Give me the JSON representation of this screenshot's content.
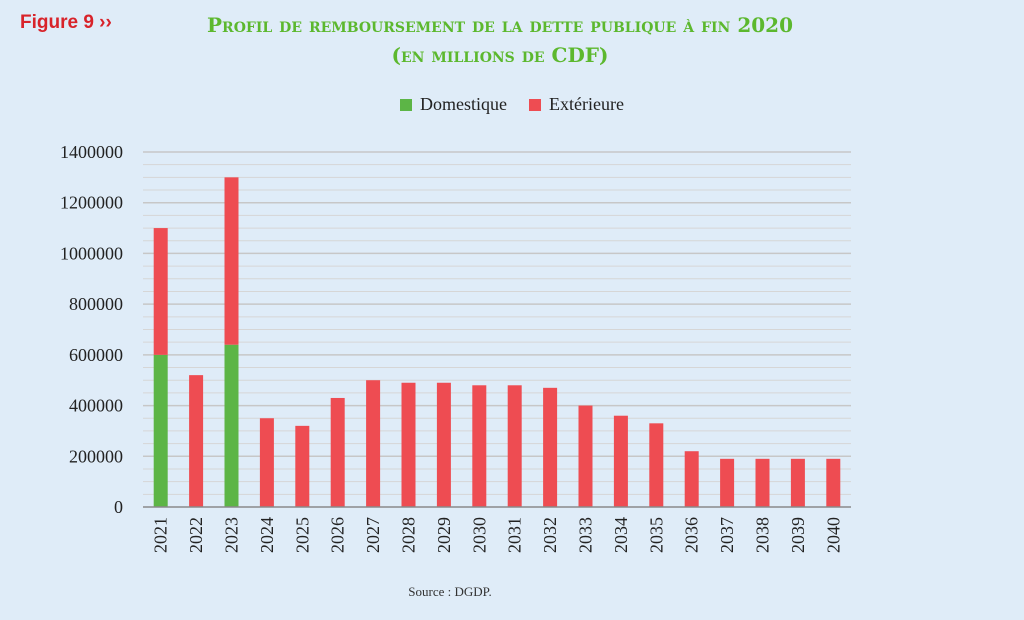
{
  "figure_label": "Figure 9 ››",
  "title_line1": "Profil de remboursement de la dette publique à  fin 2020",
  "title_line2": "(en millions de CDF)",
  "source": "Source : DGDP.",
  "colors": {
    "domestique": "#5cb546",
    "exterieure": "#ee4c52",
    "grid": "#c7c7c7"
  },
  "chart_data": {
    "type": "bar",
    "stacked": true,
    "categories": [
      "2021",
      "2022",
      "2023",
      "2024",
      "2025",
      "2026",
      "2027",
      "2028",
      "2029",
      "2030",
      "2031",
      "2032",
      "2033",
      "2034",
      "2035",
      "2036",
      "2037",
      "2038",
      "2039",
      "2040"
    ],
    "series": [
      {
        "name": "Domestique",
        "values": [
          600000,
          0,
          640000,
          0,
          0,
          0,
          0,
          0,
          0,
          0,
          0,
          0,
          0,
          0,
          0,
          0,
          0,
          0,
          0,
          0
        ]
      },
      {
        "name": "Extérieure",
        "values": [
          500000,
          520000,
          660000,
          350000,
          320000,
          430000,
          500000,
          490000,
          490000,
          480000,
          480000,
          470000,
          400000,
          360000,
          330000,
          220000,
          190000,
          190000,
          190000,
          190000
        ]
      }
    ],
    "ylim": [
      0,
      1400000
    ],
    "yticks": [
      0,
      200000,
      400000,
      600000,
      800000,
      1000000,
      1200000,
      1400000
    ],
    "grid": true,
    "legend_position": "top"
  }
}
